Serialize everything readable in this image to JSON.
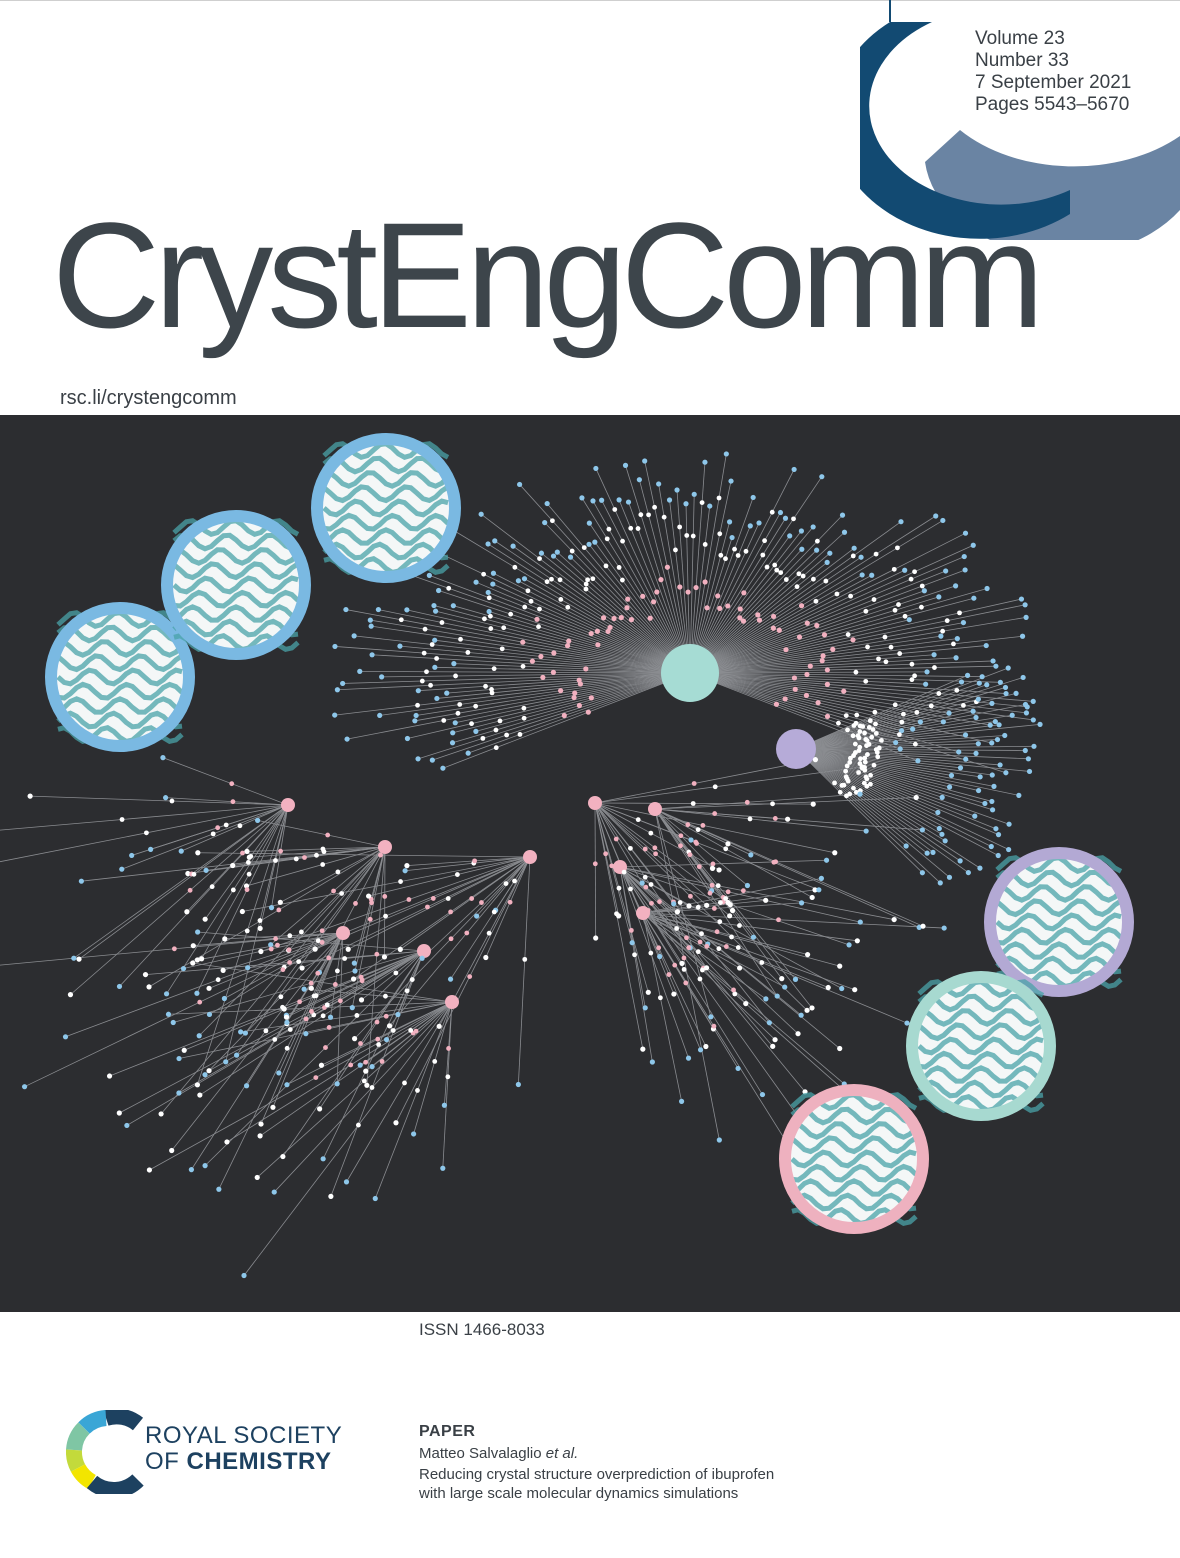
{
  "issue": {
    "volume": "Volume 23",
    "number": "Number 33",
    "date": "7 September 2021",
    "pages": "Pages 5543–5670"
  },
  "journal": {
    "title": "CrystEngComm",
    "url": "rsc.li/crystengcomm"
  },
  "issn": "ISSN 1466-8033",
  "publisher": {
    "line1": "ROYAL SOCIETY",
    "line2_prefix": "OF ",
    "line2_bold": "CHEMISTRY"
  },
  "paper": {
    "type": "PAPER",
    "authors": "Matteo Salvalaglio",
    "etal": "et al.",
    "title_line1": "Reducing crystal structure overprediction of ibuprofen",
    "title_line2": "with large scale molecular dynamics simulations"
  },
  "colors": {
    "arc_dark": "#124a72",
    "arc_light": "#6a84a3",
    "artwork_bg": "#2c2d30",
    "node_pink": "#f2b1c0",
    "node_blue": "#8ec7ea",
    "node_white": "#ffffff",
    "hub_teal": "#a6dcd4",
    "hub_purple": "#b6abd8",
    "ring_blue": "#7ab9e2",
    "ring_purple": "#b3a9d4",
    "ring_teal": "#a7d9d0",
    "ring_pink": "#eeb1bf"
  }
}
